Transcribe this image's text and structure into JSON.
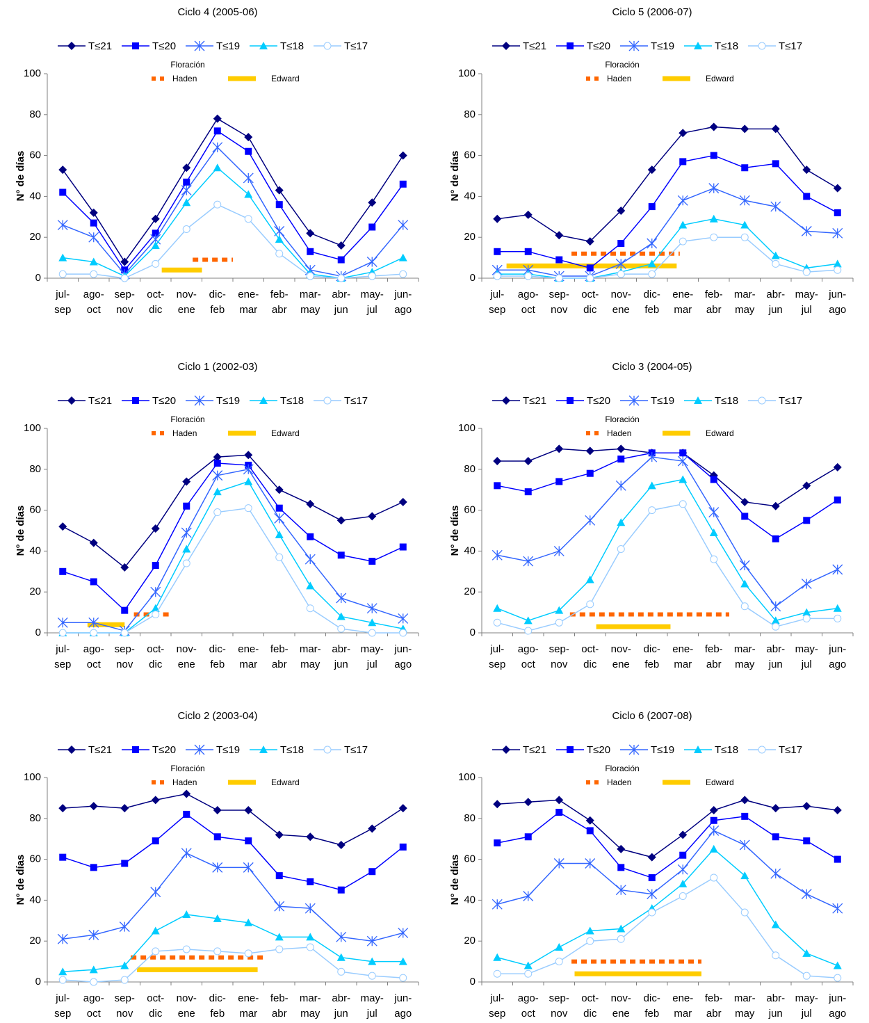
{
  "chart_data": [
    {
      "type": "line",
      "title": "Ciclo 4 (2005-06)",
      "ylabel": "N° de días",
      "categories": [
        [
          "jul-",
          "sep"
        ],
        [
          "ago-",
          "oct"
        ],
        [
          "sep-",
          "nov"
        ],
        [
          "oct-",
          "dic"
        ],
        [
          "nov-",
          "ene"
        ],
        [
          "dic-",
          "feb"
        ],
        [
          "ene-",
          "mar"
        ],
        [
          "feb-",
          "abr"
        ],
        [
          "mar-",
          "may"
        ],
        [
          "abr-",
          "jun"
        ],
        [
          "may-",
          "jul"
        ],
        [
          "jun-",
          "ago"
        ]
      ],
      "series": [
        {
          "name": "T≤21",
          "color": "#000080",
          "marker": "diamond",
          "values": [
            53,
            32,
            8,
            29,
            54,
            78,
            69,
            43,
            22,
            16,
            37,
            60
          ]
        },
        {
          "name": "T≤20",
          "color": "#0000ff",
          "marker": "square",
          "values": [
            42,
            27,
            4,
            22,
            47,
            72,
            62,
            36,
            13,
            9,
            25,
            46
          ]
        },
        {
          "name": "T≤19",
          "color": "#3366ff",
          "marker": "star",
          "values": [
            26,
            20,
            2,
            19,
            43,
            64,
            49,
            23,
            4,
            1,
            8,
            26
          ]
        },
        {
          "name": "T≤18",
          "color": "#00ccff",
          "marker": "triangle",
          "values": [
            10,
            8,
            1,
            16,
            37,
            54,
            41,
            19,
            2,
            0,
            3,
            10
          ]
        },
        {
          "name": "T≤17",
          "color": "#99ccff",
          "marker": "circle",
          "values": [
            2,
            2,
            0,
            7,
            24,
            36,
            29,
            12,
            1,
            0,
            1,
            2
          ]
        }
      ],
      "flowering": {
        "title": "Floración",
        "periods": [
          {
            "name": "Haden",
            "color": "#ff6600",
            "style": "dotted",
            "x": [
              4.2,
              5.5
            ],
            "y": 9
          },
          {
            "name": "Edward",
            "color": "#ffcc00",
            "style": "solid",
            "x": [
              3.2,
              4.5
            ],
            "y": 4
          }
        ]
      },
      "ylim": [
        0,
        100
      ],
      "yticks": [
        0,
        20,
        40,
        60,
        80,
        100
      ]
    },
    {
      "type": "line",
      "title": "Ciclo 5 (2006-07)",
      "ylabel": "N° de días",
      "categories": [
        [
          "jul-",
          "sep"
        ],
        [
          "ago-",
          "oct"
        ],
        [
          "sep-",
          "nov"
        ],
        [
          "oct-",
          "dic"
        ],
        [
          "nov-",
          "ene"
        ],
        [
          "dic-",
          "feb"
        ],
        [
          "ene-",
          "mar"
        ],
        [
          "feb-",
          "abr"
        ],
        [
          "mar-",
          "may"
        ],
        [
          "abr-",
          "jun"
        ],
        [
          "may-",
          "jul"
        ],
        [
          "jun-",
          "ago"
        ]
      ],
      "series": [
        {
          "name": "T≤21",
          "color": "#000080",
          "marker": "diamond",
          "values": [
            29,
            31,
            21,
            18,
            33,
            53,
            71,
            74,
            73,
            73,
            53,
            44
          ]
        },
        {
          "name": "T≤20",
          "color": "#0000ff",
          "marker": "square",
          "values": [
            13,
            13,
            9,
            5,
            17,
            35,
            57,
            60,
            54,
            56,
            40,
            32
          ]
        },
        {
          "name": "T≤19",
          "color": "#3366ff",
          "marker": "star",
          "values": [
            4,
            4,
            1,
            1,
            7,
            17,
            38,
            44,
            38,
            35,
            23,
            22
          ]
        },
        {
          "name": "T≤18",
          "color": "#00ccff",
          "marker": "triangle",
          "values": [
            2,
            2,
            0,
            0,
            3,
            7,
            26,
            29,
            26,
            11,
            5,
            7
          ]
        },
        {
          "name": "T≤17",
          "color": "#99ccff",
          "marker": "circle",
          "values": [
            1,
            1,
            0,
            0,
            2,
            2,
            18,
            20,
            20,
            7,
            3,
            4
          ]
        }
      ],
      "flowering": {
        "title": "Floración",
        "periods": [
          {
            "name": "Haden",
            "color": "#ff6600",
            "style": "dotted",
            "x": [
              2.4,
              5.9
            ],
            "y": 12
          },
          {
            "name": "Edward",
            "color": "#ffcc00",
            "style": "solid",
            "x": [
              0.3,
              5.8
            ],
            "y": 6
          }
        ]
      },
      "ylim": [
        0,
        100
      ],
      "yticks": [
        0,
        20,
        40,
        60,
        80,
        100
      ]
    },
    {
      "type": "line",
      "title": "Ciclo 1 (2002-03)",
      "ylabel": "N° de días",
      "categories": [
        [
          "jul-",
          "sep"
        ],
        [
          "ago-",
          "oct"
        ],
        [
          "sep-",
          "nov"
        ],
        [
          "oct-",
          "dic"
        ],
        [
          "nov-",
          "ene"
        ],
        [
          "dic-",
          "feb"
        ],
        [
          "ene-",
          "mar"
        ],
        [
          "feb-",
          "abr"
        ],
        [
          "mar-",
          "may"
        ],
        [
          "abr-",
          "jun"
        ],
        [
          "may-",
          "jul"
        ],
        [
          "jun-",
          "ago"
        ]
      ],
      "series": [
        {
          "name": "T≤21",
          "color": "#000080",
          "marker": "diamond",
          "values": [
            52,
            44,
            32,
            51,
            74,
            86,
            87,
            70,
            63,
            55,
            57,
            64
          ]
        },
        {
          "name": "T≤20",
          "color": "#0000ff",
          "marker": "square",
          "values": [
            30,
            25,
            11,
            33,
            62,
            83,
            82,
            61,
            47,
            38,
            35,
            42
          ]
        },
        {
          "name": "T≤19",
          "color": "#3366ff",
          "marker": "star",
          "values": [
            5,
            5,
            1,
            20,
            49,
            77,
            80,
            56,
            36,
            17,
            12,
            7
          ]
        },
        {
          "name": "T≤18",
          "color": "#00ccff",
          "marker": "triangle",
          "values": [
            0,
            0,
            0,
            12,
            41,
            69,
            74,
            48,
            23,
            8,
            5,
            2
          ]
        },
        {
          "name": "T≤17",
          "color": "#99ccff",
          "marker": "circle",
          "values": [
            0,
            0,
            0,
            9,
            34,
            59,
            61,
            37,
            12,
            2,
            0,
            0
          ]
        }
      ],
      "flowering": {
        "title": "Floración",
        "periods": [
          {
            "name": "Haden",
            "color": "#ff6600",
            "style": "dotted",
            "x": [
              2.3,
              3.5
            ],
            "y": 9
          },
          {
            "name": "Edward",
            "color": "#ffcc00",
            "style": "solid",
            "x": [
              0.8,
              2.0
            ],
            "y": 4
          }
        ]
      },
      "ylim": [
        0,
        100
      ],
      "yticks": [
        0,
        20,
        40,
        60,
        80,
        100
      ]
    },
    {
      "type": "line",
      "title": "Ciclo 3 (2004-05)",
      "ylabel": "N° de días",
      "categories": [
        [
          "jul-",
          "sep"
        ],
        [
          "ago-",
          "oct"
        ],
        [
          "sep-",
          "nov"
        ],
        [
          "oct-",
          "dic"
        ],
        [
          "nov-",
          "ene"
        ],
        [
          "dic-",
          "feb"
        ],
        [
          "ene-",
          "mar"
        ],
        [
          "feb-",
          "abr"
        ],
        [
          "mar-",
          "may"
        ],
        [
          "abr-",
          "jun"
        ],
        [
          "may-",
          "jul"
        ],
        [
          "jun-",
          "ago"
        ]
      ],
      "series": [
        {
          "name": "T≤21",
          "color": "#000080",
          "marker": "diamond",
          "values": [
            84,
            84,
            90,
            89,
            90,
            88,
            88,
            77,
            64,
            62,
            72,
            81
          ]
        },
        {
          "name": "T≤20",
          "color": "#0000ff",
          "marker": "square",
          "values": [
            72,
            69,
            74,
            78,
            85,
            88,
            88,
            75,
            57,
            46,
            55,
            65
          ]
        },
        {
          "name": "T≤19",
          "color": "#3366ff",
          "marker": "star",
          "values": [
            38,
            35,
            40,
            55,
            72,
            86,
            84,
            59,
            33,
            13,
            24,
            31
          ]
        },
        {
          "name": "T≤18",
          "color": "#00ccff",
          "marker": "triangle",
          "values": [
            12,
            6,
            11,
            26,
            54,
            72,
            75,
            49,
            24,
            6,
            10,
            12
          ]
        },
        {
          "name": "T≤17",
          "color": "#99ccff",
          "marker": "circle",
          "values": [
            5,
            1,
            5,
            14,
            41,
            60,
            63,
            36,
            13,
            3,
            7,
            7
          ]
        }
      ],
      "flowering": {
        "title": "Floración",
        "periods": [
          {
            "name": "Haden",
            "color": "#ff6600",
            "style": "dotted",
            "x": [
              2.35,
              7.5
            ],
            "y": 9
          },
          {
            "name": "Edward",
            "color": "#ffcc00",
            "style": "solid",
            "x": [
              3.2,
              5.6
            ],
            "y": 3
          }
        ]
      },
      "ylim": [
        0,
        100
      ],
      "yticks": [
        0,
        20,
        40,
        60,
        80,
        100
      ]
    },
    {
      "type": "line",
      "title": "Ciclo 2 (2003-04)",
      "ylabel": "N° de días",
      "categories": [
        [
          "jul-",
          "sep"
        ],
        [
          "ago-",
          "oct"
        ],
        [
          "sep-",
          "nov"
        ],
        [
          "oct-",
          "dic"
        ],
        [
          "nov-",
          "ene"
        ],
        [
          "dic-",
          "feb"
        ],
        [
          "ene-",
          "mar"
        ],
        [
          "feb-",
          "abr"
        ],
        [
          "mar-",
          "may"
        ],
        [
          "abr-",
          "jun"
        ],
        [
          "may-",
          "jul"
        ],
        [
          "jun-",
          "ago"
        ]
      ],
      "series": [
        {
          "name": "T≤21",
          "color": "#000080",
          "marker": "diamond",
          "values": [
            85,
            86,
            85,
            89,
            92,
            84,
            84,
            72,
            71,
            67,
            75,
            85
          ]
        },
        {
          "name": "T≤20",
          "color": "#0000ff",
          "marker": "square",
          "values": [
            61,
            56,
            58,
            69,
            82,
            71,
            69,
            52,
            49,
            45,
            54,
            66
          ]
        },
        {
          "name": "T≤19",
          "color": "#3366ff",
          "marker": "star",
          "values": [
            21,
            23,
            27,
            44,
            63,
            56,
            56,
            37,
            36,
            22,
            20,
            24
          ]
        },
        {
          "name": "T≤18",
          "color": "#00ccff",
          "marker": "triangle",
          "values": [
            5,
            6,
            8,
            25,
            33,
            31,
            29,
            22,
            22,
            12,
            10,
            10
          ]
        },
        {
          "name": "T≤17",
          "color": "#99ccff",
          "marker": "circle",
          "values": [
            1,
            0,
            1,
            15,
            16,
            15,
            14,
            16,
            17,
            5,
            3,
            2
          ]
        }
      ],
      "flowering": {
        "title": "Floración",
        "periods": [
          {
            "name": "Haden",
            "color": "#ff6600",
            "style": "dotted",
            "x": [
              2.2,
              6.6
            ],
            "y": 12
          },
          {
            "name": "Edward",
            "color": "#ffcc00",
            "style": "solid",
            "x": [
              2.4,
              6.3
            ],
            "y": 6
          }
        ]
      },
      "ylim": [
        0,
        100
      ],
      "yticks": [
        0,
        20,
        40,
        60,
        80,
        100
      ]
    },
    {
      "type": "line",
      "title": "Ciclo 6 (2007-08)",
      "ylabel": "N° de días",
      "categories": [
        [
          "jul-",
          "sep"
        ],
        [
          "ago-",
          "oct"
        ],
        [
          "sep-",
          "nov"
        ],
        [
          "oct-",
          "dic"
        ],
        [
          "nov-",
          "ene"
        ],
        [
          "dic-",
          "feb"
        ],
        [
          "ene-",
          "mar"
        ],
        [
          "feb-",
          "abr"
        ],
        [
          "mar-",
          "may"
        ],
        [
          "abr-",
          "jun"
        ],
        [
          "may-",
          "jul"
        ],
        [
          "jun-",
          "ago"
        ]
      ],
      "series": [
        {
          "name": "T≤21",
          "color": "#000080",
          "marker": "diamond",
          "values": [
            87,
            88,
            89,
            79,
            65,
            61,
            72,
            84,
            89,
            85,
            86,
            84
          ]
        },
        {
          "name": "T≤20",
          "color": "#0000ff",
          "marker": "square",
          "values": [
            68,
            71,
            83,
            74,
            56,
            51,
            62,
            79,
            81,
            71,
            69,
            60
          ]
        },
        {
          "name": "T≤19",
          "color": "#3366ff",
          "marker": "star",
          "values": [
            38,
            42,
            58,
            58,
            45,
            43,
            55,
            74,
            67,
            53,
            43,
            36
          ]
        },
        {
          "name": "T≤18",
          "color": "#00ccff",
          "marker": "triangle",
          "values": [
            12,
            8,
            17,
            25,
            26,
            36,
            48,
            65,
            52,
            28,
            14,
            8
          ]
        },
        {
          "name": "T≤17",
          "color": "#99ccff",
          "marker": "circle",
          "values": [
            4,
            4,
            10,
            20,
            21,
            34,
            42,
            51,
            34,
            13,
            3,
            2
          ]
        }
      ],
      "flowering": {
        "title": "Floración",
        "periods": [
          {
            "name": "Haden",
            "color": "#ff6600",
            "style": "dotted",
            "x": [
              2.4,
              6.6
            ],
            "y": 10
          },
          {
            "name": "Edward",
            "color": "#ffcc00",
            "style": "solid",
            "x": [
              2.5,
              6.6
            ],
            "y": 4
          }
        ]
      },
      "ylim": [
        0,
        100
      ],
      "yticks": [
        0,
        20,
        40,
        60,
        80,
        100
      ]
    }
  ]
}
